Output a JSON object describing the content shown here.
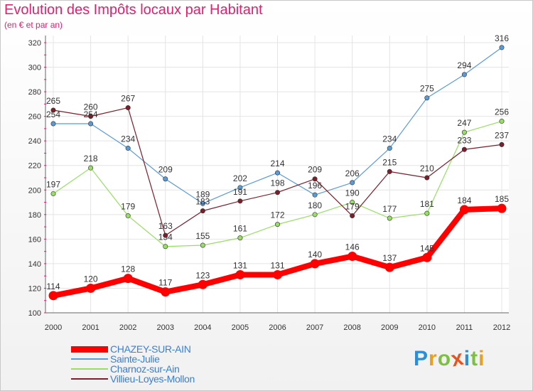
{
  "chart_data": {
    "type": "line",
    "title": "Evolution des Impôts locaux par Habitant",
    "subtitle": "(en € et par an)",
    "xlabel": "",
    "ylabel": "",
    "x": [
      "2000",
      "2001",
      "2002",
      "2003",
      "2004",
      "2005",
      "2006",
      "2007",
      "2008",
      "2009",
      "2010",
      "2011",
      "2012"
    ],
    "ylim": [
      100,
      320
    ],
    "yticks": [
      100,
      120,
      140,
      160,
      180,
      200,
      220,
      240,
      260,
      280,
      300,
      320
    ],
    "grid": true,
    "legend_position": "bottom-left",
    "series": [
      {
        "name": "CHAZEY-SUR-AIN",
        "color": "#ff0000",
        "highlight": true,
        "values": [
          114,
          120,
          128,
          117,
          123,
          131,
          131,
          140,
          146,
          137,
          145,
          184,
          185
        ]
      },
      {
        "name": "Sainte-Julie",
        "color": "#5b9bd5",
        "highlight": false,
        "values": [
          254,
          254,
          234,
          209,
          189,
          202,
          214,
          196,
          206,
          234,
          275,
          294,
          316
        ]
      },
      {
        "name": "Charnoz-sur-Ain",
        "color": "#99dd66",
        "highlight": false,
        "values": [
          197,
          218,
          179,
          154,
          155,
          161,
          172,
          180,
          190,
          177,
          181,
          247,
          256
        ]
      },
      {
        "name": "Villieu-Loyes-Mollon",
        "color": "#7a1f2b",
        "highlight": false,
        "values": [
          265,
          260,
          267,
          163,
          183,
          191,
          198,
          209,
          179,
          215,
          210,
          233,
          237
        ]
      }
    ]
  },
  "logo": {
    "letters": [
      "P",
      "r",
      "o",
      "x",
      "i",
      "t",
      "i"
    ],
    "colors": [
      "#2b8fd6",
      "#e8a020",
      "#7bc043",
      "#e8531e",
      "#2b8fd6",
      "#7bc043",
      "#e8a020"
    ]
  }
}
